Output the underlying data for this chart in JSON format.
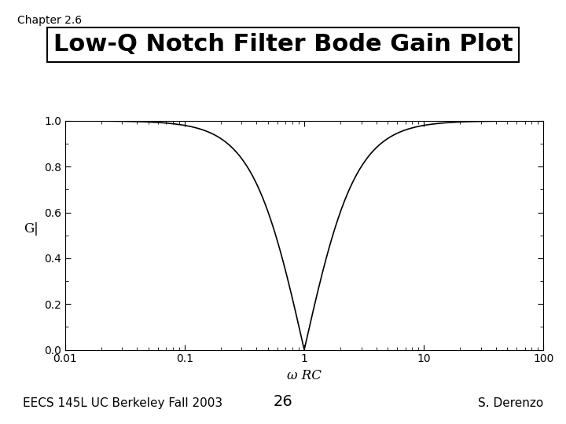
{
  "chapter_label": "Chapter 2.6",
  "title": "Low-Q Notch Filter Bode Gain Plot",
  "xlabel": "ω RC",
  "ylabel": "G|",
  "xlim": [
    0.01,
    100
  ],
  "ylim": [
    0.0,
    1.0
  ],
  "yticks": [
    0.0,
    0.2,
    0.4,
    0.6,
    0.8,
    1.0
  ],
  "xticks": [
    0.01,
    0.1,
    1,
    10,
    100
  ],
  "xticklabels": [
    "0.01",
    "0.1",
    "1",
    "10",
    "100"
  ],
  "footer_left": "EECS 145L UC Berkeley Fall 2003",
  "footer_center": "26",
  "footer_right": "S. Derenzo",
  "line_color": "#000000",
  "background_color": "#ffffff",
  "title_fontsize": 22,
  "chapter_fontsize": 10,
  "footer_fontsize": 11
}
